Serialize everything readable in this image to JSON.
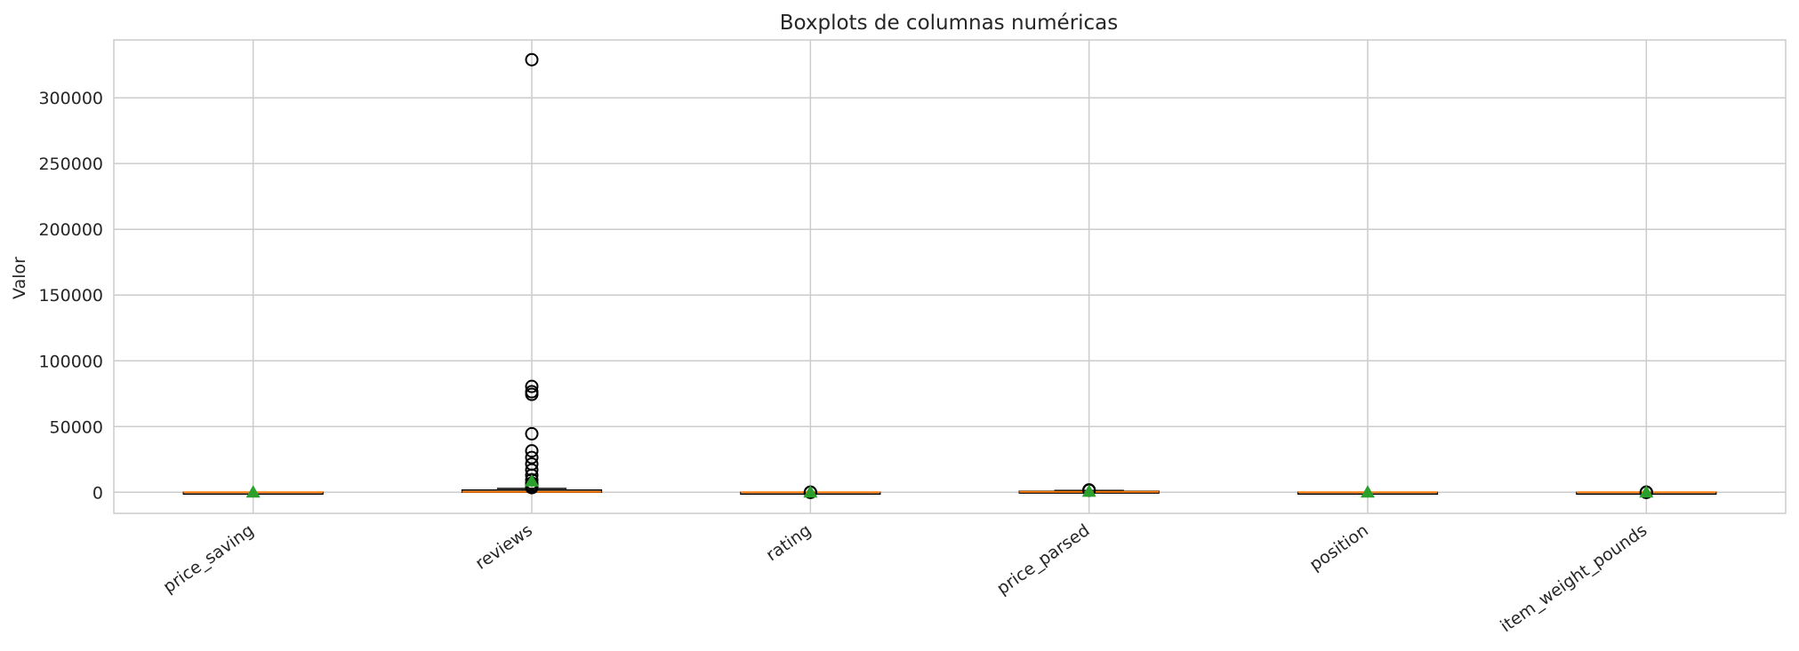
{
  "chart_data": {
    "type": "boxplot",
    "title": "Boxplots de columnas numéricas",
    "ylabel": "Valor",
    "xlabel": "",
    "ylim": [
      -16000,
      344000
    ],
    "yticks": [
      0,
      50000,
      100000,
      150000,
      200000,
      250000,
      300000
    ],
    "ytick_labels": [
      "0",
      "50000",
      "100000",
      "150000",
      "200000",
      "250000",
      "300000"
    ],
    "grid": true,
    "categories": [
      "price_saving",
      "reviews",
      "rating",
      "price_parsed",
      "position",
      "item_weight_pounds"
    ],
    "boxes": [
      {
        "name": "price_saving",
        "whislo": 0,
        "q1": 0,
        "med": 0,
        "q3": 0,
        "whishi": 0,
        "mean": 0,
        "fliers": []
      },
      {
        "name": "reviews",
        "whislo": 0,
        "q1": 50,
        "med": 400,
        "q3": 1700,
        "whishi": 2900,
        "mean": 8500,
        "fliers": [
          329000,
          80500,
          76500,
          74500,
          44500,
          31500,
          26500,
          21500,
          17000,
          13000,
          9500,
          7000,
          5000,
          4000,
          3500
        ]
      },
      {
        "name": "rating",
        "whislo": 4.2,
        "q1": 4.5,
        "med": 4.7,
        "q3": 4.8,
        "whishi": 5,
        "mean": 4.6,
        "fliers": [
          1,
          2,
          3
        ]
      },
      {
        "name": "price_parsed",
        "whislo": 5,
        "q1": 150,
        "med": 350,
        "q3": 800,
        "whishi": 1400,
        "mean": 600,
        "fliers": [
          1500,
          1600,
          1800
        ]
      },
      {
        "name": "position",
        "whislo": 1,
        "q1": 5,
        "med": 12,
        "q3": 20,
        "whishi": 30,
        "mean": 12,
        "fliers": []
      },
      {
        "name": "item_weight_pounds",
        "whislo": 0,
        "q1": 0.5,
        "med": 1,
        "q3": 3,
        "whishi": 6,
        "mean": 2,
        "fliers": [
          10,
          12,
          15,
          20
        ]
      }
    ],
    "colors": {
      "median": "#ff7f0e",
      "mean": "#2ca02c",
      "box": "#000000",
      "grid": "#cccccc"
    }
  }
}
